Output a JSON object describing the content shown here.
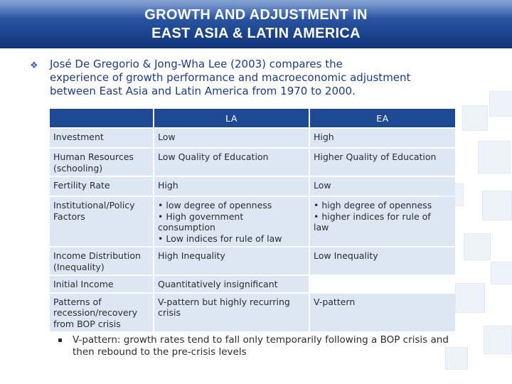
{
  "slide": {
    "title_line1": "GROWTH AND ADJUSTMENT IN",
    "title_line2": "EAST ASIA & LATIN AMERICA",
    "bullet_line1": "José De Gregorio & Jong-Wha Lee  (2003) compares the",
    "bullet_line2": "experience of growth performance and macroeconomic adjustment",
    "bullet_line3": "between East Asia and Latin America from 1970 to 2000.",
    "bullet_icon": "diamond-bullet-icon",
    "footnote_line1": "V-pattern: growth rates tend to fall only temporarily following a BOP crisis and",
    "footnote_line2": "then rebound to the pre-crisis levels"
  },
  "table": {
    "headers": [
      "",
      "LA",
      "EA"
    ],
    "rows": [
      {
        "label": [
          "Investment"
        ],
        "la": [
          "Low"
        ],
        "ea": [
          "High"
        ]
      },
      {
        "label": [
          "Human Resources",
          "(schooling)"
        ],
        "la": [
          "Low Quality of Education"
        ],
        "ea": [
          "Higher Quality of Education"
        ]
      },
      {
        "label": [
          "Fertility Rate"
        ],
        "la": [
          "High"
        ],
        "ea": [
          "Low"
        ]
      },
      {
        "label": [
          "Institutional/Policy",
          "Factors"
        ],
        "la": [
          "• low degree of openness",
          "• High government",
          "consumption",
          "• Low indices for rule of law"
        ],
        "ea": [
          "• high degree of openness",
          "• higher indices for rule of",
          "law"
        ]
      },
      {
        "label": [
          "Income Distribution",
          "(Inequality)"
        ],
        "la": [
          "High  Inequality"
        ],
        "ea": [
          "Low Inequality"
        ]
      },
      {
        "label": [
          "Initial Income"
        ],
        "la": [
          "Quantitatively insignificant"
        ],
        "ea": []
      },
      {
        "label": [
          "Patterns of",
          "recession/recovery",
          "from BOP crisis"
        ],
        "la": [
          "V-pattern but highly recurring",
          "crisis"
        ],
        "ea": [
          "V-pattern"
        ]
      }
    ]
  },
  "colors": {
    "title_bar": "#1f4a93",
    "header_cell": "#1f4a93",
    "body_cell": "#dce7f3",
    "bullet_text": "#1f3a86"
  }
}
